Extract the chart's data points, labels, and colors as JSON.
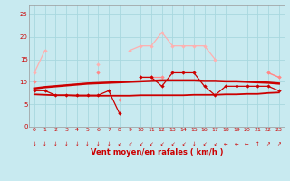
{
  "x": [
    0,
    1,
    2,
    3,
    4,
    5,
    6,
    7,
    8,
    9,
    10,
    11,
    12,
    13,
    14,
    15,
    16,
    17,
    18,
    19,
    20,
    21,
    22,
    23
  ],
  "line_lighpink": [
    12,
    17,
    null,
    null,
    null,
    null,
    14,
    null,
    null,
    17,
    18,
    18,
    21,
    18,
    18,
    18,
    18,
    15,
    null,
    null,
    null,
    null,
    12,
    11
  ],
  "line_medpink": [
    10,
    null,
    null,
    null,
    null,
    null,
    12,
    null,
    6,
    null,
    11,
    11,
    11,
    null,
    null,
    null,
    null,
    null,
    null,
    null,
    null,
    null,
    12,
    11
  ],
  "line_darkred_jagged": [
    8,
    8,
    7,
    7,
    7,
    7,
    7,
    8,
    3,
    null,
    11,
    11,
    9,
    12,
    12,
    12,
    9,
    7,
    9,
    9,
    9,
    9,
    9,
    8
  ],
  "line_smooth_upper": [
    8.5,
    8.8,
    9.0,
    9.2,
    9.4,
    9.6,
    9.7,
    9.8,
    9.9,
    10.0,
    10.1,
    10.2,
    10.3,
    10.3,
    10.3,
    10.3,
    10.2,
    10.2,
    10.1,
    10.1,
    10.0,
    9.9,
    9.8,
    9.6
  ],
  "line_smooth_lower": [
    7.2,
    7.1,
    7.0,
    7.0,
    6.9,
    6.9,
    6.9,
    6.9,
    6.9,
    6.9,
    7.0,
    7.0,
    7.0,
    7.0,
    7.0,
    7.1,
    7.1,
    7.1,
    7.2,
    7.2,
    7.3,
    7.3,
    7.5,
    7.6
  ],
  "bg_color": "#c8eaf0",
  "grid_color": "#a8d8df",
  "xlabel": "Vent moyen/en rafales ( km/h )",
  "ylim": [
    0,
    27
  ],
  "xlim": [
    -0.5,
    23.5
  ],
  "yticks": [
    0,
    5,
    10,
    15,
    20,
    25
  ],
  "xticks": [
    0,
    1,
    2,
    3,
    4,
    5,
    6,
    7,
    8,
    9,
    10,
    11,
    12,
    13,
    14,
    15,
    16,
    17,
    18,
    19,
    20,
    21,
    22,
    23
  ],
  "color_lightpink": "#ffb0b0",
  "color_medpink": "#ff8888",
  "color_darkred": "#cc0000",
  "color_smooth1": "#cc0000",
  "color_smooth2": "#cc0000"
}
